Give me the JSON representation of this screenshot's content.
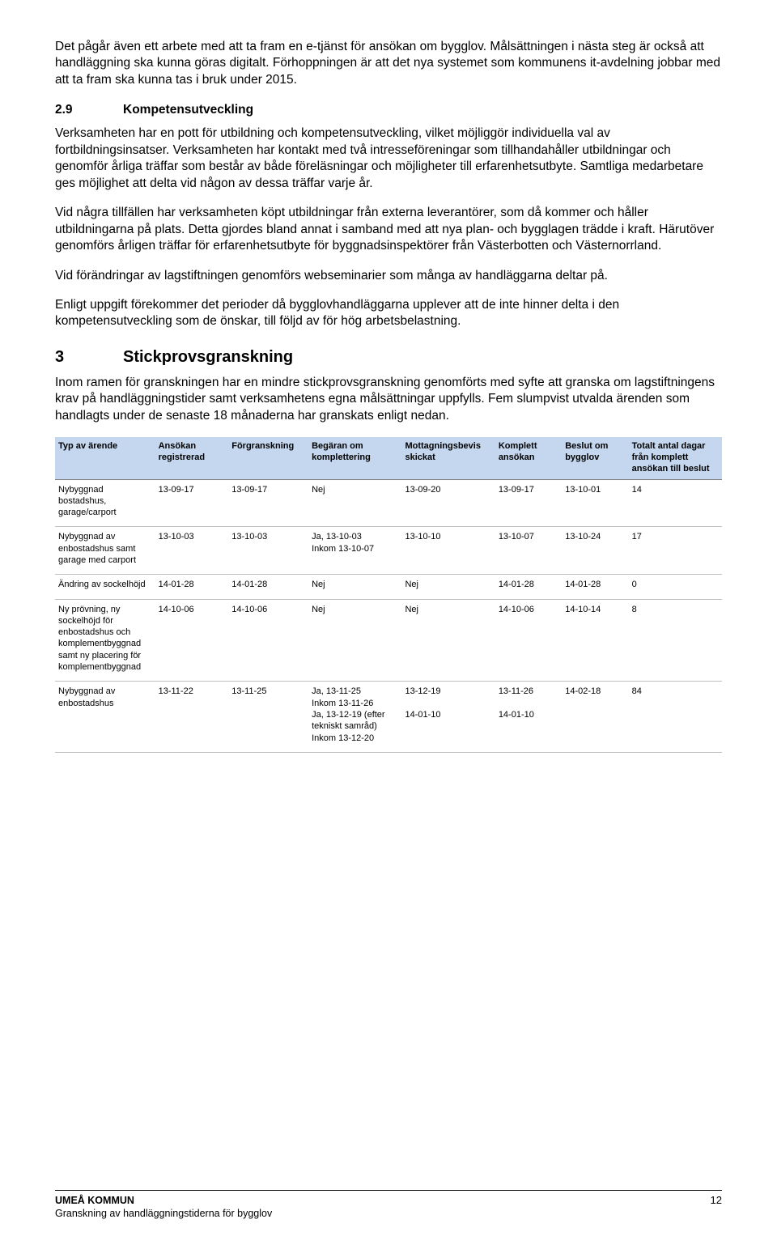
{
  "paragraphs": {
    "p1": "Det pågår även ett arbete med att ta fram en e-tjänst för ansökan om bygglov. Målsättningen i nästa steg är också att handläggning ska kunna göras digitalt. Förhoppningen är att det nya systemet som kommunens it-avdelning jobbar med att ta fram ska kunna tas i bruk under 2015.",
    "p2": "Verksamheten har en pott för utbildning och kompetensutveckling, vilket möjliggör individuella val av fortbildningsinsatser. Verksamheten har kontakt med två intresseföreningar som tillhandahåller utbildningar och genomför årliga träffar som består av både föreläsningar och möjligheter till erfarenhetsutbyte. Samtliga medarbetare ges möjlighet att delta vid någon av dessa träffar varje år.",
    "p3": "Vid några tillfällen har verksamheten köpt utbildningar från externa leverantörer, som då kommer och håller utbildningarna på plats. Detta gjordes bland annat i samband med att nya plan- och bygglagen trädde i kraft. Härutöver genomförs årligen träffar för erfarenhetsutbyte för byggnadsinspektörer från Västerbotten och Västernorrland.",
    "p4": "Vid förändringar av lagstiftningen genomförs webseminarier som många av handläggarna deltar på.",
    "p5": "Enligt uppgift förekommer det perioder då bygglovhandläggarna upplever att de inte hinner delta i den kompetensutveckling som de önskar, till följd av för hög arbetsbelastning.",
    "p6": "Inom ramen för granskningen har en mindre stickprovsgranskning genomförts med syfte att granska om lagstiftningens krav på handläggningstider samt verksamhetens egna målsättningar uppfylls. Fem slumpvist utvalda ärenden som handlagts under de senaste 18 månaderna har granskats enligt nedan."
  },
  "sections": {
    "s29_num": "2.9",
    "s29_title": "Kompetensutveckling",
    "s3_num": "3",
    "s3_title": "Stickprovsgranskning"
  },
  "table": {
    "headers": {
      "type": "Typ av ärende",
      "reg": "Ansökan registrerad",
      "pre": "Förgranskning",
      "comp": "Begäran om komplettering",
      "receipt": "Mottagningsbevis skickat",
      "compl": "Komplett ansökan",
      "decision": "Beslut om bygglov",
      "total": "Totalt antal dagar från komplett ansökan till beslut"
    },
    "rows": [
      {
        "type": "Nybyggnad bostadshus, garage/carport",
        "reg": "13-09-17",
        "pre": "13-09-17",
        "comp": "Nej",
        "receipt": "13-09-20",
        "compl": "13-09-17",
        "decision": "13-10-01",
        "total": "14"
      },
      {
        "type": "Nybyggnad av enbostadshus samt garage med carport",
        "reg": "13-10-03",
        "pre": "13-10-03",
        "comp": "Ja, 13-10-03\nInkom 13-10-07",
        "receipt": "13-10-10",
        "compl": "13-10-07",
        "decision": "13-10-24",
        "total": "17"
      },
      {
        "type": "Ändring av sockelhöjd",
        "reg": "14-01-28",
        "pre": "14-01-28",
        "comp": "Nej",
        "receipt": "Nej",
        "compl": "14-01-28",
        "decision": "14-01-28",
        "total": "0"
      },
      {
        "type": "Ny prövning, ny sockelhöjd för enbostadshus och komplementbyggnad samt ny placering för komplementbyggnad",
        "reg": "14-10-06",
        "pre": "14-10-06",
        "comp": "Nej",
        "receipt": "Nej",
        "compl": "14-10-06",
        "decision": "14-10-14",
        "total": "8"
      },
      {
        "type": "Nybyggnad av enbostadshus",
        "reg": "13-11-22",
        "pre": "13-11-25",
        "comp": "Ja, 13-11-25\nInkom 13-11-26\nJa, 13-12-19 (efter tekniskt samråd)\nInkom 13-12-20",
        "receipt": "13-12-19\n\n14-01-10",
        "compl": "13-11-26\n\n14-01-10",
        "decision": "14-02-18",
        "total": "84"
      }
    ]
  },
  "footer": {
    "org": "UMEÅ KOMMUN",
    "sub": "Granskning av handläggningstiderna för bygglov",
    "page": "12"
  }
}
